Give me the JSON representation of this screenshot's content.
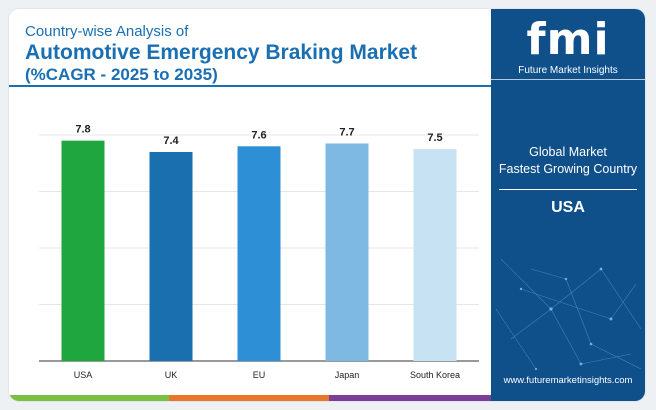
{
  "header": {
    "subtitle": "Country-wise Analysis of",
    "title": "Automotive Emergency Braking Market",
    "title_line2": "(%CAGR - 2025 to 2035)"
  },
  "chart_data": {
    "type": "bar",
    "categories": [
      "USA",
      "UK",
      "EU",
      "Japan",
      "South Korea"
    ],
    "values": [
      7.8,
      7.4,
      7.6,
      7.7,
      7.5
    ],
    "colors": [
      "#1fa63f",
      "#1a6fae",
      "#2d8fd6",
      "#7eb9e3",
      "#c6e2f3"
    ],
    "ylim": [
      0,
      8
    ],
    "grid": true,
    "title": "",
    "xlabel": "",
    "ylabel": ""
  },
  "sidebar": {
    "logo_text": "fmi",
    "logo_caption": "Future Market Insights",
    "global_label": "Global Market",
    "fastest_label": "Fastest Growing Country",
    "country": "USA",
    "url": "www.futuremarketinsights.com"
  },
  "colors": {
    "brand_blue": "#1a6fb3",
    "sidebar_bg": "#0f4f8a",
    "stripe_green": "#7ac143",
    "stripe_orange": "#e8762b",
    "stripe_purple": "#7b3f98"
  }
}
